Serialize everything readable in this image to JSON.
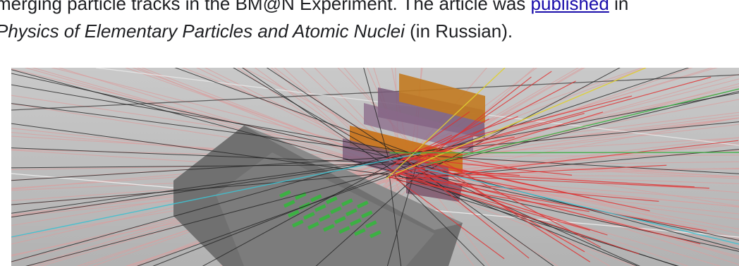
{
  "article": {
    "line1_prefix": "merging particle tracks in the BM@N Experiment. The article was ",
    "link_text": "published",
    "line1_suffix": " in",
    "line2_italic": "Physics of Elementary Particles and Atomic Nuclei",
    "line2_suffix": " (in Russian)."
  },
  "figure": {
    "description_icon": "detector-visualization-image",
    "colors": {
      "background": "#b9b9b9",
      "detector_gray": "#6b6b6b",
      "detector_orange": "#c9731a",
      "detector_purple": "#7a5a7a",
      "track_pink": "#d9a0a0",
      "track_black": "#222222",
      "track_red": "#e03030",
      "track_green": "#3cb043",
      "track_cyan": "#40c0d0",
      "track_yellow": "#e0d030"
    }
  }
}
